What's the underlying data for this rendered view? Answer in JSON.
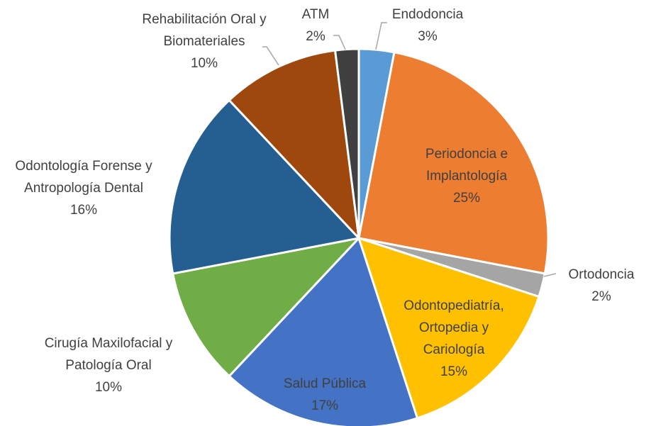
{
  "chart_data": {
    "type": "pie",
    "categories": [
      "Endodoncia",
      "Periodoncia e Implantología",
      "Ortodoncia",
      "Odontopediatría, Ortopedia y Cariología",
      "Salud Pública",
      "Cirugía Maxilofacial y Patología Oral",
      "Odontología Forense y Antropología Dental",
      "Rehabilitación Oral y Biomateriales",
      "ATM"
    ],
    "values": [
      3,
      25,
      2,
      15,
      17,
      10,
      16,
      10,
      2
    ],
    "value_labels": [
      "3%",
      "25%",
      "2%",
      "15%",
      "17%",
      "10%",
      "16%",
      "10%",
      "2%"
    ],
    "colors": [
      "#5b9bd5",
      "#ed7d31",
      "#a5a5a5",
      "#ffc000",
      "#4472c4",
      "#70ad47",
      "#255e91",
      "#9e480e",
      "#404040"
    ]
  }
}
